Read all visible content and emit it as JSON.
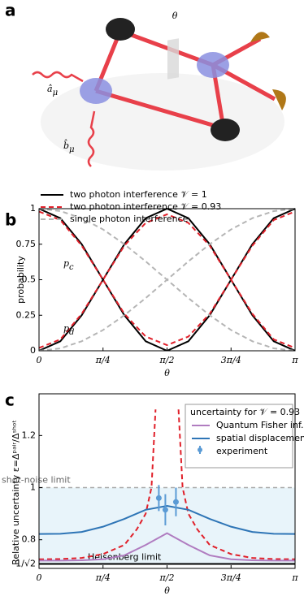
{
  "panel_labels": [
    "a",
    "b",
    "c"
  ],
  "diagram": {
    "theta": "θ",
    "input_a": {
      "base": "â",
      "sub": "μ"
    },
    "input_b": {
      "base": "b̂",
      "sub": "μ"
    }
  },
  "chart_data": [
    {
      "type": "line",
      "x_label": "θ",
      "y_label": "probability",
      "x": [
        0,
        0.2618,
        0.5236,
        0.7854,
        1.0472,
        1.309,
        1.5708,
        1.8326,
        2.0944,
        2.3562,
        2.618,
        2.8798,
        3.1416
      ],
      "xlim": [
        0,
        3.1416
      ],
      "ylim": [
        0,
        1
      ],
      "xticks": [
        {
          "value": 0,
          "label": "0"
        },
        {
          "value": 0.7854,
          "label": "π/4"
        },
        {
          "value": 1.5708,
          "label": "π/2"
        },
        {
          "value": 2.3562,
          "label": "3π/4"
        },
        {
          "value": 3.1416,
          "label": "π"
        }
      ],
      "yticks": [
        0,
        0.25,
        0.5,
        0.75,
        1
      ],
      "annotations": [
        {
          "text": "p",
          "sub": "c"
        },
        {
          "text": "p",
          "sub": "d"
        }
      ],
      "series": [
        {
          "name": "two photon interference 𝒱 = 1",
          "color": "#000000",
          "dash": false,
          "curves": [
            [
              1,
              0.933,
              0.75,
              0.5,
              0.25,
              0.067,
              0,
              0.067,
              0.25,
              0.5,
              0.75,
              0.933,
              1
            ],
            [
              0,
              0.067,
              0.25,
              0.5,
              0.75,
              0.933,
              1,
              0.933,
              0.75,
              0.5,
              0.25,
              0.067,
              0
            ]
          ]
        },
        {
          "name": "two photon interference 𝒱 = 0.93",
          "color": "#e0202a",
          "dash": true,
          "curves": [
            [
              0.98,
              0.92,
              0.74,
              0.5,
              0.26,
              0.1,
              0.04,
              0.1,
              0.26,
              0.5,
              0.74,
              0.92,
              0.98
            ],
            [
              0.02,
              0.08,
              0.26,
              0.5,
              0.74,
              0.9,
              0.96,
              0.9,
              0.74,
              0.5,
              0.26,
              0.08,
              0.02
            ]
          ]
        },
        {
          "name": "single photon interference",
          "color": "#b5b5b5",
          "dash": true,
          "curves": [
            [
              1,
              0.983,
              0.933,
              0.854,
              0.75,
              0.629,
              0.5,
              0.371,
              0.25,
              0.146,
              0.067,
              0.017,
              0
            ],
            [
              0,
              0.017,
              0.067,
              0.146,
              0.25,
              0.371,
              0.5,
              0.629,
              0.75,
              0.854,
              0.933,
              0.983,
              1
            ]
          ]
        }
      ]
    },
    {
      "type": "line",
      "x_label": "θ",
      "y_label": "Relative uncertainty ε=Δᵖᵃⁱʳ/Δˢʰᵒᵗ",
      "legend_title": "uncertainty for 𝒱 = 0.93",
      "x": [
        0,
        0.2618,
        0.5236,
        0.7854,
        1.0472,
        1.309,
        1.5708,
        1.8326,
        2.0944,
        2.3562,
        2.618,
        2.8798,
        3.1416
      ],
      "xlim": [
        0,
        3.1416
      ],
      "ylim": [
        0.69,
        1.36
      ],
      "xticks": [
        {
          "value": 0,
          "label": "0"
        },
        {
          "value": 0.7854,
          "label": "π/4"
        },
        {
          "value": 1.5708,
          "label": "π/2"
        },
        {
          "value": 2.3562,
          "label": "3π/4"
        },
        {
          "value": 3.1416,
          "label": "π"
        }
      ],
      "yticks": [
        {
          "value": 0.7071,
          "label": "1/√2"
        },
        0.8,
        1,
        1.2
      ],
      "hlines": [
        {
          "label": "shot-noise limit",
          "value": 1,
          "color": "#aaaaaa",
          "dash": true
        },
        {
          "label": "Heisenberg limit",
          "value": 0.7071,
          "color": "#000000",
          "dash": false
        }
      ],
      "shade_color": "#e8f4fa",
      "series": [
        {
          "color": "#e0202a",
          "dash": true,
          "x": [
            0,
            0.2618,
            0.5236,
            0.7854,
            1.0472,
            1.2,
            1.309,
            1.38,
            1.43,
            1.5708,
            1.7116,
            1.7616,
            1.8326,
            1.9416,
            2.0944,
            2.3562,
            2.618,
            2.8798,
            3.1416
          ],
          "values": [
            0.725,
            0.726,
            0.73,
            0.745,
            0.78,
            0.84,
            0.9,
            1.0,
            1.3,
            null,
            1.3,
            1.0,
            0.9,
            0.84,
            0.78,
            0.745,
            0.73,
            0.726,
            0.725
          ]
        },
        {
          "name": "Quantum Fisher inf.",
          "color": "#b07cc0",
          "dash": false,
          "values": [
            0.72,
            0.72,
            0.721,
            0.725,
            0.74,
            0.78,
            0.825,
            0.78,
            0.74,
            0.725,
            0.721,
            0.72,
            0.72
          ]
        },
        {
          "name": "spatial displacement",
          "color": "#2e75b6",
          "dash": false,
          "values": [
            0.822,
            0.823,
            0.83,
            0.85,
            0.88,
            0.915,
            0.93,
            0.915,
            0.88,
            0.85,
            0.83,
            0.823,
            0.822
          ]
        },
        {
          "name": "experiment",
          "color": "#5b9bd5",
          "marker": "errorbar",
          "x": [
            1.47,
            1.55,
            1.68
          ],
          "values": [
            0.96,
            0.915,
            0.945
          ],
          "errors": [
            0.05,
            0.06,
            0.055
          ]
        }
      ]
    }
  ]
}
